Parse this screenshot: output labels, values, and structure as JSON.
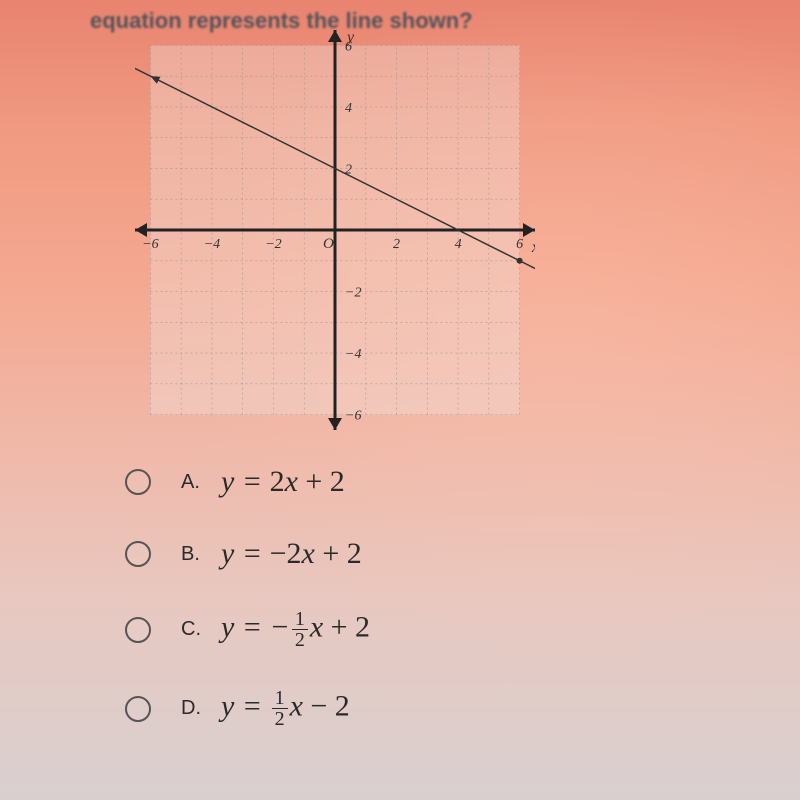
{
  "question_text": "equation represents the line shown?",
  "graph": {
    "xlim": [
      -6.5,
      6.5
    ],
    "ylim": [
      -6.5,
      6.5
    ],
    "ticks": [
      -6,
      -4,
      -2,
      2,
      4,
      6
    ],
    "x_label": "x",
    "y_label": "y",
    "grid_color": "#888888",
    "axis_color": "#222222",
    "line_points": [
      [
        -7,
        5.5
      ],
      [
        7,
        -1.5
      ]
    ],
    "line_color": "#333333",
    "origin_label": "O"
  },
  "options": [
    {
      "letter": "A.",
      "prefix": "y = ",
      "coef": "2",
      "var": "x",
      "tail": " + 2",
      "neg": false,
      "frac": null
    },
    {
      "letter": "B.",
      "prefix": "y = ",
      "coef": "−2",
      "var": "x",
      "tail": " + 2",
      "neg": false,
      "frac": null
    },
    {
      "letter": "C.",
      "prefix": "y = −",
      "coef": "",
      "var": "x",
      "tail": " + 2",
      "neg": false,
      "frac": {
        "n": "1",
        "d": "2"
      }
    },
    {
      "letter": "D.",
      "prefix": "y = ",
      "coef": "",
      "var": "x",
      "tail": " − 2",
      "neg": false,
      "frac": {
        "n": "1",
        "d": "2"
      }
    }
  ],
  "style": {
    "question_fontsize": 22,
    "option_fontsize": 30,
    "letter_fontsize": 20,
    "text_color": "#2a2a2a"
  }
}
